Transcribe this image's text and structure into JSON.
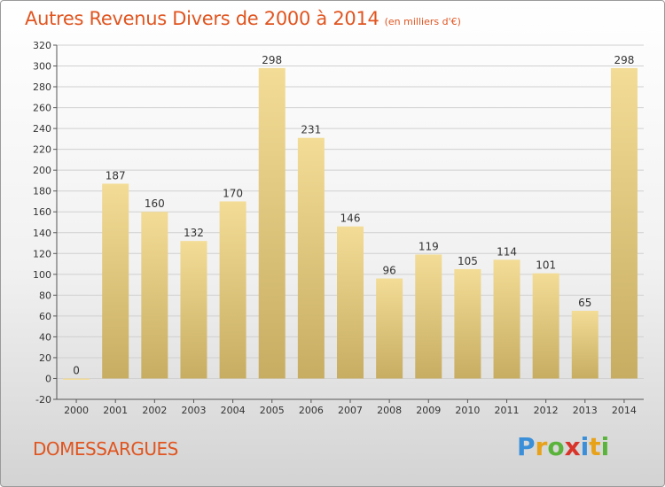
{
  "title": "Autres Revenus Divers de 2000 à 2014",
  "subtitle": "(en milliers d'€)",
  "commune": "DOMESSARGUES",
  "logo": {
    "text": "Proxiti",
    "colors": [
      "#3a8fd8",
      "#e8a21a",
      "#5ab43c",
      "#d8342a",
      "#3a8fd8",
      "#e8a21a",
      "#5ab43c"
    ]
  },
  "colors": {
    "bar_light": "#f3dc96",
    "bar_dark": "#c7ad62",
    "title": "#e05520",
    "grid": "#d0d0d0"
  },
  "chart_data": {
    "type": "bar",
    "categories": [
      "2000",
      "2001",
      "2002",
      "2003",
      "2004",
      "2005",
      "2006",
      "2007",
      "2008",
      "2009",
      "2010",
      "2011",
      "2012",
      "2013",
      "2014"
    ],
    "values": [
      0,
      187,
      160,
      132,
      170,
      298,
      231,
      146,
      96,
      119,
      105,
      114,
      101,
      65,
      298
    ],
    "ylim": [
      -20,
      320
    ],
    "yticks": [
      -20,
      0,
      20,
      40,
      60,
      80,
      100,
      120,
      140,
      160,
      180,
      200,
      220,
      240,
      260,
      280,
      300,
      320
    ],
    "grid": true
  }
}
